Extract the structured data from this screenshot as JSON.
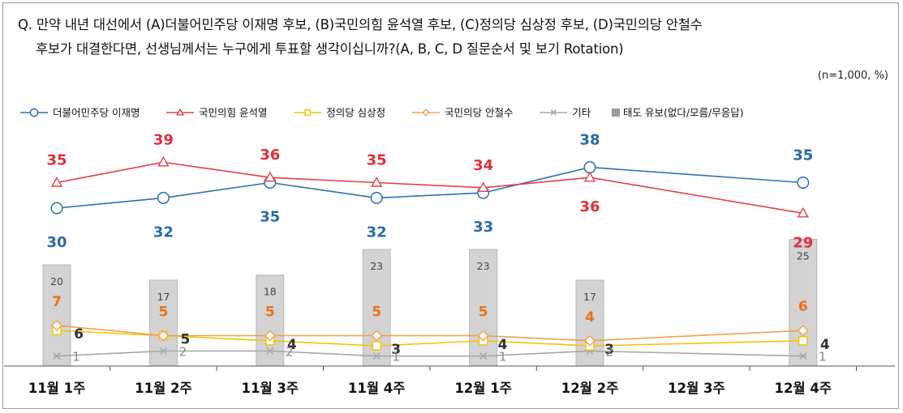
{
  "question": {
    "line1": "Q. 만약 내년 대선에서 (A)더불어민주당 이재명 후보, (B)국민의힘 윤석열 후보, (C)정의당 심상정 후보, (D)국민의당 안철수",
    "line2": "후보가 대결한다면, 선생님께서는 누구에게 투표할 생각이십니까?(A, B, C, D 질문순서 및 보기 Rotation)"
  },
  "sample_note": "(n=1,000, %)",
  "chart_data": {
    "type": "line",
    "categories": [
      "11월 1주",
      "11월 2주",
      "11월 3주",
      "11월 4주",
      "12월 1주",
      "12월 2주",
      "12월 3주",
      "12월 4주"
    ],
    "series": [
      {
        "name": "더불어민주당 이재명",
        "values": [
          30,
          32,
          35,
          32,
          33,
          38,
          null,
          35
        ],
        "color": "#2f6fb0",
        "marker": "circle",
        "label_color": "#2a6aa8"
      },
      {
        "name": "국민의힘 윤석열",
        "values": [
          35,
          39,
          36,
          35,
          34,
          36,
          null,
          29
        ],
        "color": "#e0404a",
        "marker": "triangle",
        "label_color": "#e0303c"
      },
      {
        "name": "정의당 심상정",
        "values": [
          6,
          5,
          4,
          3,
          4,
          3,
          null,
          4
        ],
        "color": "#f2c40a",
        "marker": "square",
        "label_color": "#333333"
      },
      {
        "name": "국민의당 안철수",
        "values": [
          7,
          5,
          5,
          5,
          5,
          4,
          null,
          6
        ],
        "color": "#f0a050",
        "marker": "diamond",
        "label_color": "#e8701a"
      },
      {
        "name": "기타",
        "values": [
          1,
          2,
          2,
          1,
          1,
          2,
          null,
          1
        ],
        "color": "#a8a8a8",
        "marker": "x",
        "label_color": "#888888"
      },
      {
        "name": "태도 유보(없다/모름/무응답)",
        "values": [
          20,
          17,
          18,
          23,
          23,
          17,
          null,
          25
        ],
        "type": "bar",
        "color": "#d3d3d3",
        "label_color": "#444444"
      }
    ],
    "legend_position": "top"
  }
}
